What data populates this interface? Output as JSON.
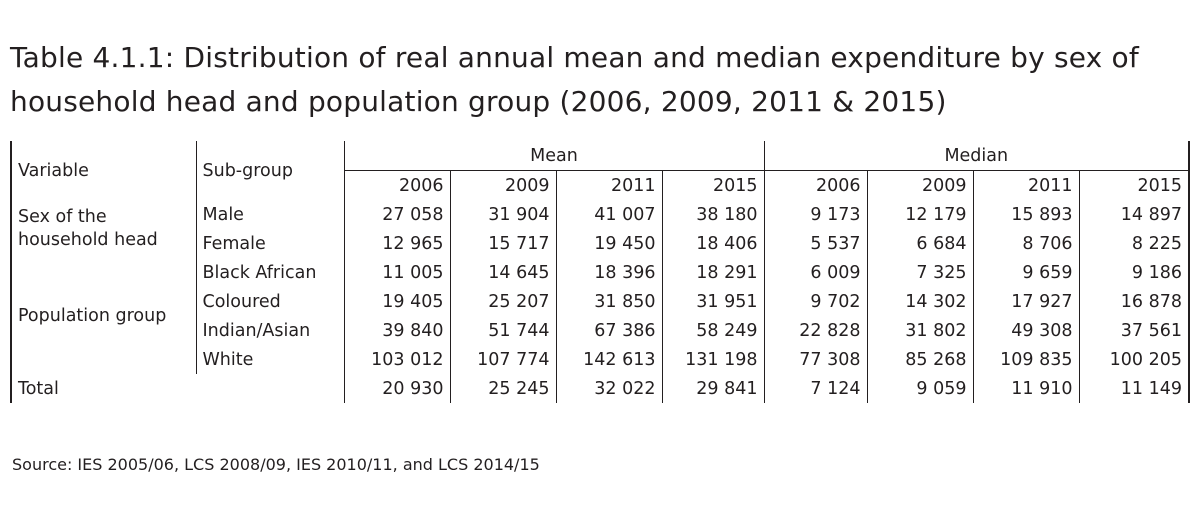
{
  "title_line1": "Table 4.1.1: Distribution of real annual mean and median expenditure by sex of",
  "title_line2": "household head and population group (2006, 2009, 2011 & 2015)",
  "headers": {
    "variable": "Variable",
    "subgroup": "Sub-group",
    "mean": "Mean",
    "median": "Median",
    "years": [
      "2006",
      "2009",
      "2011",
      "2015"
    ]
  },
  "groups": [
    {
      "label_line1": "Sex of the",
      "label_line2": "household head",
      "rows": [
        {
          "subgroup": "Male",
          "values": [
            "27 058",
            "31 904",
            "41 007",
            "38 180",
            "9 173",
            "12 179",
            "15 893",
            "14 897"
          ]
        },
        {
          "subgroup": "Female",
          "values": [
            "12 965",
            "15 717",
            "19 450",
            "18 406",
            "5 537",
            "6 684",
            "8 706",
            "8 225"
          ]
        }
      ]
    },
    {
      "label_line1": "Population group",
      "rows": [
        {
          "subgroup": "Black African",
          "values": [
            "11 005",
            "14 645",
            "18 396",
            "18 291",
            "6 009",
            "7 325",
            "9 659",
            "9 186"
          ]
        },
        {
          "subgroup": "Coloured",
          "values": [
            "19 405",
            "25 207",
            "31 850",
            "31 951",
            "9 702",
            "14 302",
            "17 927",
            "16 878"
          ]
        },
        {
          "subgroup": "Indian/Asian",
          "values": [
            "39 840",
            "51 744",
            "67 386",
            "58 249",
            "22 828",
            "31 802",
            "49 308",
            "37 561"
          ]
        },
        {
          "subgroup": "White",
          "values": [
            "103 012",
            "107 774",
            "142 613",
            "131 198",
            "77 308",
            "85 268",
            "109 835",
            "100 205"
          ]
        }
      ]
    }
  ],
  "total": {
    "label": "Total",
    "values": [
      "20 930",
      "25 245",
      "32 022",
      "29 841",
      "7 124",
      "9 059",
      "11 910",
      "11 149"
    ]
  },
  "source": "Source: IES 2005/06, LCS 2008/09, IES 2010/11, and LCS 2014/15"
}
